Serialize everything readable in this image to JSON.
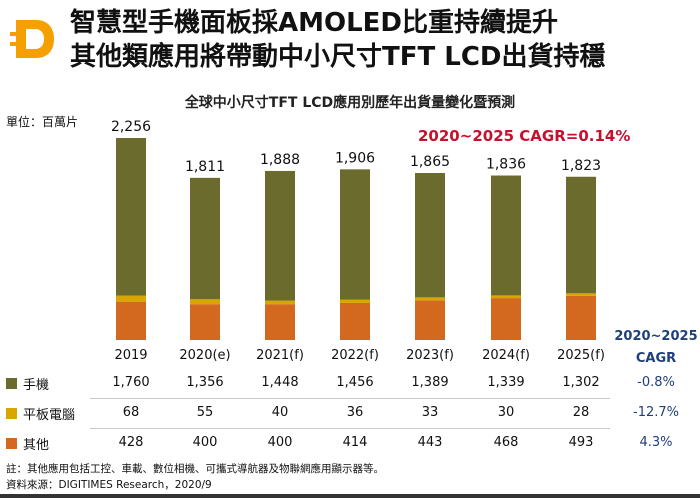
{
  "header": {
    "title_line1": "智慧型手機面板採AMOLED比重持續提升",
    "title_line2": "其他類應用將帶動中小尺寸TFT LCD出貨持穩"
  },
  "subtitle": "全球中小尺寸TFT LCD應用別歷年出貨量變化暨預測",
  "unit": "單位：百萬片",
  "cagr_note": "2020~2025 CAGR=0.14%",
  "colors": {
    "phone": "#6b6b2e",
    "tablet": "#d9a600",
    "other": "#d2691e",
    "logo": "#f5a000",
    "cagr": "#1f3f7a"
  },
  "chart_data": {
    "type": "bar",
    "stacked": true,
    "categories": [
      "2019",
      "2020(e)",
      "2021(f)",
      "2022(f)",
      "2023(f)",
      "2024(f)",
      "2025(f)"
    ],
    "series": [
      {
        "name": "手機",
        "values": [
          1760,
          1356,
          1448,
          1456,
          1389,
          1339,
          1302
        ]
      },
      {
        "name": "平板電腦",
        "values": [
          68,
          55,
          40,
          36,
          33,
          30,
          28
        ]
      },
      {
        "name": "其他",
        "values": [
          428,
          400,
          400,
          414,
          443,
          468,
          493
        ]
      }
    ],
    "totals": [
      "2,256",
      "1,811",
      "1,888",
      "1,906",
      "1,865",
      "1,836",
      "1,823"
    ],
    "table_values": [
      [
        "1,760",
        "1,356",
        "1,448",
        "1,456",
        "1,389",
        "1,339",
        "1,302"
      ],
      [
        "68",
        "55",
        "40",
        "36",
        "33",
        "30",
        "28"
      ],
      [
        "428",
        "400",
        "400",
        "414",
        "443",
        "468",
        "493"
      ]
    ],
    "cagr_header_line1": "2020~2025",
    "cagr_header_line2": "CAGR",
    "cagr": [
      "-0.8%",
      "-12.7%",
      "4.3%"
    ],
    "ylim": [
      0,
      2256
    ],
    "grid": false,
    "legend": "table-left"
  },
  "footnotes": {
    "note": "註：其他應用包括工控、車載、數位相機、可攜式導航器及物聯網應用顯示器等。",
    "source": "資料來源：DIGITIMES Research，2020/9"
  }
}
